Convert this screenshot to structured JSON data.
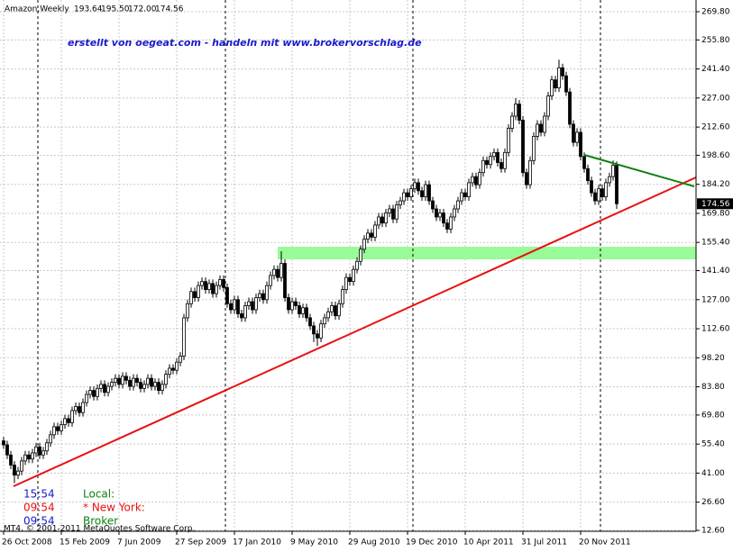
{
  "chart_data": {
    "type": "candlestick",
    "title": "Amazon,Weekly",
    "last_labels": {
      "open": "193.64",
      "high": "195.50",
      "low": "172.00",
      "close": "174.56"
    },
    "annotation": "erstellt von oegeat.com - handeln mit www.brokervorschlag.de",
    "clocks": [
      {
        "time": "15:54",
        "label": "Local:"
      },
      {
        "time": "09:54",
        "label": "* New York:"
      },
      {
        "time": "09:54",
        "label": "Broker"
      }
    ],
    "copyright": "MT4, © 2001-2011 MetaQuotes Software Corp.",
    "grid": true,
    "bull_color": "#ffffff",
    "bear_color": "#000000",
    "wick_color": "#000000",
    "ylim": [
      12.15,
      275.6
    ],
    "yticks": [
      {
        "value": 269.8,
        "label": "269.80"
      },
      {
        "value": 255.8,
        "label": "255.80"
      },
      {
        "value": 241.4,
        "label": "241.40"
      },
      {
        "value": 227,
        "label": "227.00"
      },
      {
        "value": 212.6,
        "label": "212.60"
      },
      {
        "value": 198.6,
        "label": "198.60"
      },
      {
        "value": 184.2,
        "label": "184.20"
      },
      {
        "value": 169.8,
        "label": "169.80"
      },
      {
        "value": 155.4,
        "label": "155.40"
      },
      {
        "value": 141.4,
        "label": "141.40"
      },
      {
        "value": 127,
        "label": "127.00"
      },
      {
        "value": 112.6,
        "label": "112.60"
      },
      {
        "value": 98.2,
        "label": "98.20"
      },
      {
        "value": 83.8,
        "label": "83.80"
      },
      {
        "value": 69.8,
        "label": "69.80"
      },
      {
        "value": 55.4,
        "label": "55.40"
      },
      {
        "value": 41,
        "label": "41.00"
      },
      {
        "value": 26.6,
        "label": "26.60"
      },
      {
        "value": 12.6,
        "label": "12.60"
      }
    ],
    "categories": [
      "26 Oct 2008",
      null,
      null,
      null,
      null,
      null,
      null,
      null,
      null,
      null,
      null,
      null,
      null,
      null,
      null,
      null,
      "15 Feb 2009",
      null,
      null,
      null,
      null,
      null,
      null,
      null,
      null,
      null,
      null,
      null,
      null,
      null,
      null,
      null,
      "7 Jun 2009",
      null,
      null,
      null,
      null,
      null,
      null,
      null,
      null,
      null,
      null,
      null,
      null,
      null,
      null,
      null,
      "27 Sep 2009",
      null,
      null,
      null,
      null,
      null,
      null,
      null,
      null,
      null,
      null,
      null,
      null,
      null,
      null,
      null,
      "17 Jan 2010",
      null,
      null,
      null,
      null,
      null,
      null,
      null,
      null,
      null,
      null,
      null,
      null,
      null,
      null,
      null,
      "9 May 2010",
      null,
      null,
      null,
      null,
      null,
      null,
      null,
      null,
      null,
      null,
      null,
      null,
      null,
      null,
      null,
      "29 Aug 2010",
      null,
      null,
      null,
      null,
      null,
      null,
      null,
      null,
      null,
      null,
      null,
      null,
      null,
      null,
      null,
      "19 Dec 2010",
      null,
      null,
      null,
      null,
      null,
      null,
      null,
      null,
      null,
      null,
      null,
      null,
      null,
      null,
      null,
      "10 Apr 2011",
      null,
      null,
      null,
      null,
      null,
      null,
      null,
      null,
      null,
      null,
      null,
      null,
      null,
      null,
      null,
      "31 Jul 2011",
      null,
      null,
      null,
      null,
      null,
      null,
      null,
      null,
      null,
      null,
      null,
      null,
      null,
      null,
      null,
      "20 Nov 2011",
      null,
      null,
      null,
      null,
      null,
      null,
      null,
      null,
      null,
      null
    ],
    "open": [
      57,
      55,
      50,
      45,
      40,
      42,
      47,
      50,
      48,
      51,
      54,
      50,
      52,
      56,
      60,
      64,
      62,
      65,
      68,
      66,
      72,
      74,
      71,
      76,
      80,
      82,
      79,
      83,
      85,
      81,
      84,
      86,
      88,
      85,
      89,
      87,
      84,
      88,
      86,
      83,
      85,
      88,
      84,
      86,
      82,
      85,
      90,
      93,
      92,
      96,
      99,
      118,
      125,
      131,
      128,
      134,
      136,
      132,
      135,
      130,
      134,
      137,
      133,
      125,
      122,
      127,
      120,
      118,
      124,
      126,
      122,
      128,
      130,
      127,
      134,
      139,
      142,
      138,
      145,
      128,
      122,
      126,
      124,
      120,
      123,
      118,
      114,
      110,
      108,
      115,
      118,
      121,
      124,
      119,
      125,
      132,
      138,
      136,
      142,
      146,
      152,
      157,
      160,
      158,
      164,
      168,
      165,
      170,
      172,
      167,
      174,
      176,
      180,
      178,
      182,
      185,
      181,
      178,
      184,
      176,
      172,
      168,
      170,
      165,
      162,
      168,
      172,
      176,
      180,
      178,
      185,
      188,
      184,
      190,
      196,
      194,
      198,
      200,
      195,
      192,
      200,
      212,
      218,
      224,
      216,
      190,
      184,
      196,
      208,
      214,
      210,
      218,
      228,
      236,
      232,
      242,
      238,
      230,
      214,
      205,
      210,
      198,
      192,
      186,
      180,
      176,
      182,
      178,
      185,
      188,
      193.64
    ],
    "high": [
      59,
      57,
      52,
      47,
      44,
      49,
      52,
      52,
      53,
      56,
      56,
      54,
      58,
      62,
      66,
      66,
      67,
      70,
      70,
      74,
      76,
      76,
      78,
      82,
      84,
      84,
      85,
      87,
      87,
      86,
      88,
      90,
      90,
      91,
      91,
      89,
      90,
      90,
      88,
      87,
      90,
      90,
      88,
      88,
      87,
      92,
      95,
      95,
      98,
      101,
      120,
      127,
      133,
      133,
      136,
      138,
      138,
      137,
      137,
      136,
      139,
      139,
      135,
      127,
      129,
      129,
      122,
      126,
      128,
      128,
      130,
      132,
      132,
      136,
      141,
      144,
      144,
      151,
      147,
      130,
      128,
      128,
      126,
      125,
      125,
      120,
      116,
      112,
      117,
      120,
      123,
      126,
      126,
      127,
      134,
      140,
      140,
      144,
      148,
      154,
      159,
      162,
      162,
      166,
      170,
      170,
      172,
      174,
      174,
      176,
      178,
      182,
      182,
      184,
      187,
      187,
      183,
      186,
      186,
      178,
      174,
      172,
      172,
      167,
      170,
      174,
      178,
      182,
      182,
      187,
      190,
      190,
      192,
      198,
      198,
      200,
      202,
      202,
      197,
      202,
      214,
      220,
      227,
      226,
      218,
      192,
      198,
      210,
      216,
      216,
      220,
      230,
      238,
      238,
      246,
      244,
      240,
      232,
      216,
      212,
      212,
      200,
      194,
      188,
      182,
      184,
      184,
      187,
      190,
      196,
      195.5
    ],
    "low": [
      53,
      48,
      43,
      36,
      38,
      40,
      45,
      46,
      46,
      49,
      48,
      48,
      50,
      54,
      58,
      60,
      60,
      63,
      64,
      64,
      70,
      69,
      69,
      74,
      78,
      77,
      77,
      81,
      79,
      79,
      82,
      84,
      83,
      83,
      85,
      82,
      82,
      84,
      81,
      81,
      83,
      82,
      82,
      80,
      80,
      83,
      88,
      90,
      90,
      94,
      97,
      116,
      123,
      126,
      126,
      132,
      130,
      130,
      128,
      128,
      132,
      131,
      123,
      120,
      120,
      118,
      116,
      116,
      122,
      120,
      120,
      126,
      125,
      125,
      132,
      137,
      136,
      136,
      126,
      120,
      120,
      122,
      118,
      118,
      116,
      112,
      106,
      104,
      106,
      113,
      116,
      119,
      117,
      117,
      123,
      130,
      134,
      134,
      140,
      144,
      150,
      155,
      156,
      156,
      162,
      163,
      163,
      168,
      165,
      165,
      172,
      174,
      176,
      176,
      180,
      179,
      176,
      176,
      174,
      170,
      166,
      166,
      163,
      160,
      160,
      166,
      170,
      174,
      176,
      176,
      183,
      182,
      182,
      188,
      192,
      192,
      196,
      193,
      190,
      190,
      198,
      210,
      216,
      214,
      188,
      182,
      182,
      194,
      206,
      208,
      208,
      216,
      226,
      230,
      230,
      236,
      228,
      212,
      203,
      203,
      196,
      190,
      184,
      178,
      174,
      174,
      176,
      176,
      183,
      186,
      172
    ],
    "close": [
      55,
      50,
      45,
      40,
      42,
      47,
      50,
      48,
      51,
      54,
      50,
      52,
      56,
      60,
      64,
      62,
      65,
      68,
      66,
      72,
      74,
      71,
      76,
      80,
      82,
      79,
      83,
      85,
      81,
      84,
      86,
      88,
      85,
      89,
      87,
      84,
      88,
      86,
      83,
      85,
      88,
      84,
      86,
      82,
      85,
      90,
      93,
      92,
      96,
      99,
      118,
      125,
      131,
      128,
      134,
      136,
      132,
      135,
      130,
      134,
      137,
      133,
      125,
      122,
      127,
      120,
      118,
      124,
      126,
      122,
      128,
      130,
      127,
      134,
      139,
      142,
      138,
      145,
      128,
      122,
      126,
      124,
      120,
      123,
      118,
      114,
      110,
      108,
      115,
      118,
      121,
      124,
      119,
      125,
      132,
      138,
      136,
      142,
      146,
      152,
      157,
      160,
      158,
      164,
      168,
      165,
      170,
      172,
      167,
      174,
      176,
      180,
      178,
      182,
      185,
      181,
      178,
      184,
      176,
      172,
      168,
      170,
      165,
      162,
      168,
      172,
      176,
      180,
      178,
      185,
      188,
      184,
      190,
      196,
      194,
      198,
      200,
      195,
      192,
      200,
      212,
      218,
      224,
      216,
      190,
      184,
      196,
      208,
      214,
      210,
      218,
      228,
      236,
      232,
      242,
      238,
      230,
      214,
      205,
      210,
      198,
      192,
      186,
      180,
      176,
      182,
      178,
      185,
      188,
      193.64,
      174.56
    ]
  }
}
